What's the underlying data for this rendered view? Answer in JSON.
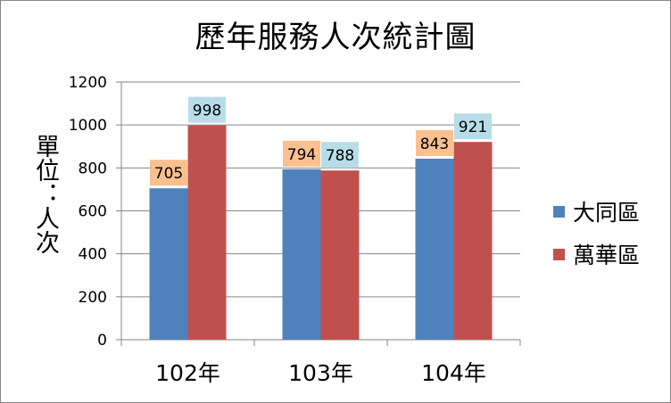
{
  "chart_data": {
    "type": "bar",
    "title": "歷年服務人次統計圖",
    "ylabel": "單位：人次",
    "xlabel": "",
    "categories": [
      "102年",
      "103年",
      "104年"
    ],
    "series": [
      {
        "name": "大同區",
        "values": [
          705,
          794,
          843
        ],
        "color": "#4F81BD",
        "label_bg": "#FAC090"
      },
      {
        "name": "萬華區",
        "values": [
          998,
          788,
          921
        ],
        "color": "#C0504D",
        "label_bg": "#B7DEE8"
      }
    ],
    "ylim": [
      0,
      1200
    ],
    "yticks": [
      0,
      200,
      400,
      600,
      800,
      1000,
      1200
    ],
    "grid": true,
    "legend": "right"
  }
}
